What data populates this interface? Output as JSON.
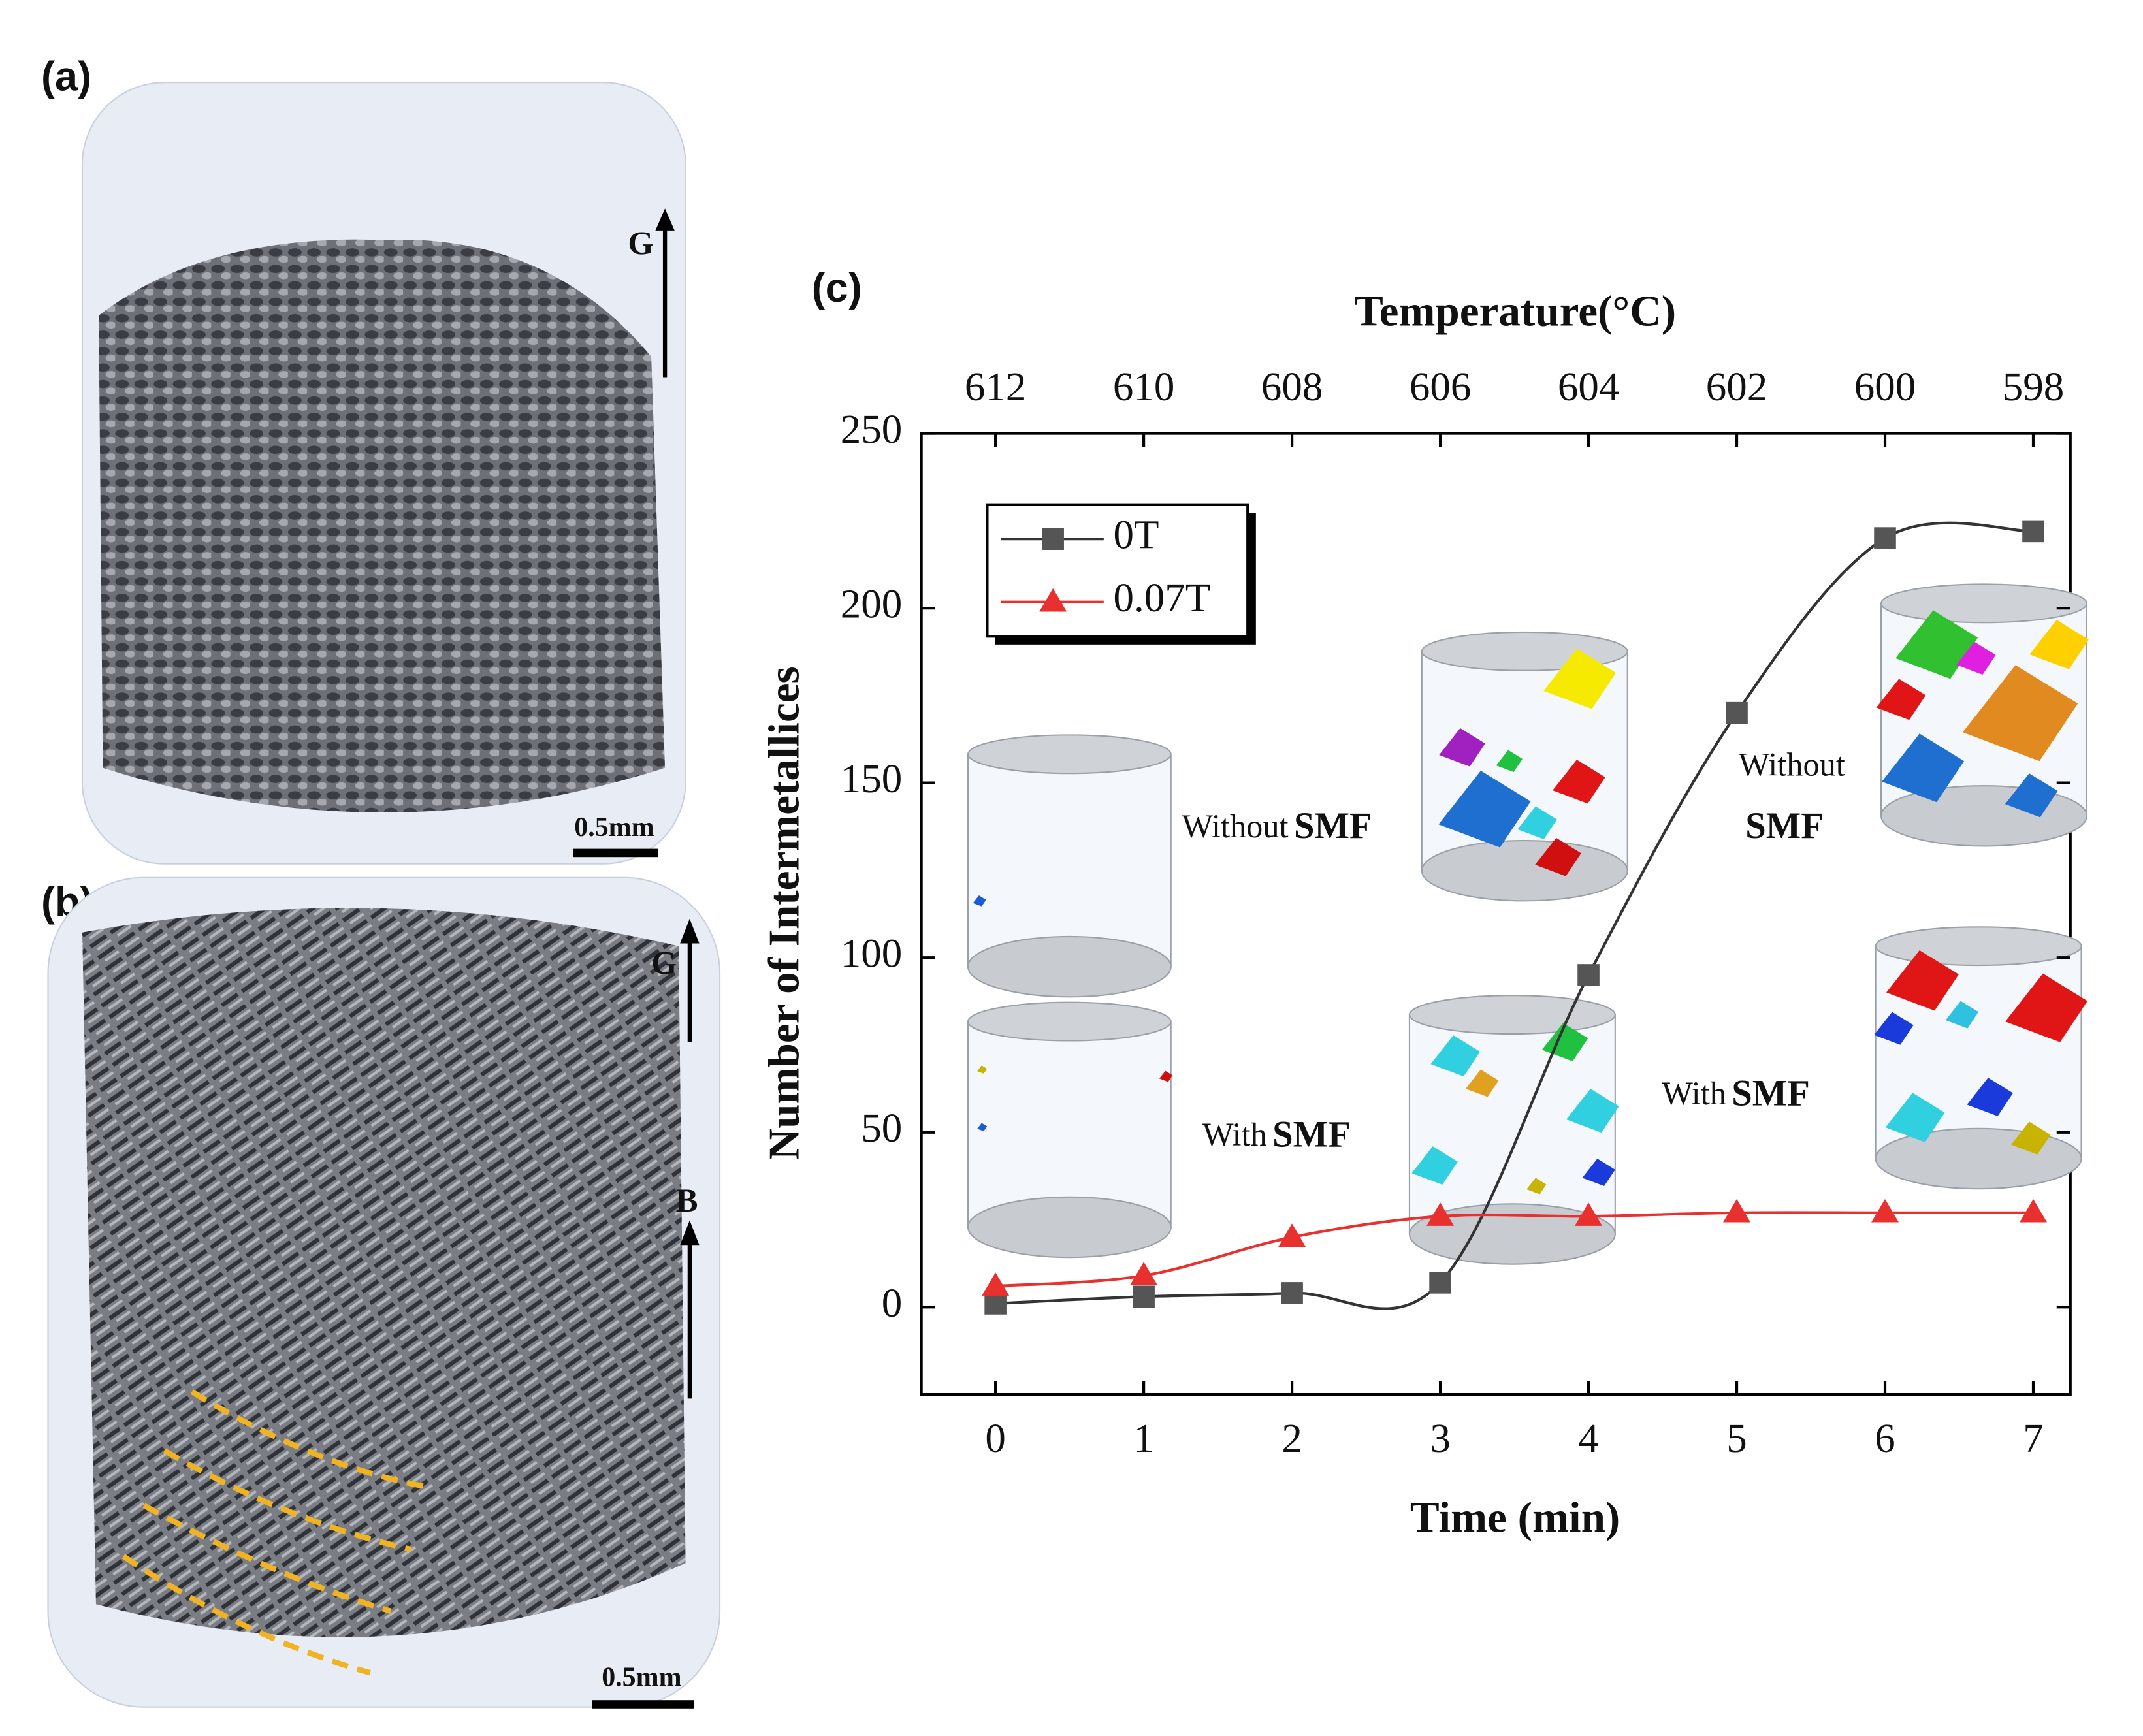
{
  "panels": [
    {
      "label": "(a)",
      "arrow_labels": [
        "G"
      ],
      "scale_bar": "0.5mm"
    },
    {
      "label": "(b)",
      "arrow_labels": [
        "G",
        "B"
      ],
      "scale_bar": "0.5mm"
    }
  ],
  "chart_data": {
    "type": "line",
    "panel_label": "(c)",
    "x_label": "Time (min)",
    "y_label": "Number of Intermetallices",
    "x2_label": "Temperature(°C)",
    "x": [
      0,
      1,
      2,
      3,
      4,
      5,
      6,
      7
    ],
    "series": [
      {
        "name": "0T",
        "color": "#333333",
        "marker": "square",
        "values": [
          1,
          3,
          4,
          7,
          95,
          170,
          220,
          222
        ]
      },
      {
        "name": "0.07T",
        "color": "#e8312f",
        "marker": "triangle",
        "values": [
          6,
          9,
          20,
          26,
          26,
          27,
          27,
          27
        ]
      }
    ],
    "xlim": [
      -0.5,
      7.25
    ],
    "ylim": [
      -25,
      250
    ],
    "xticks": [
      0,
      1,
      2,
      3,
      4,
      5,
      6,
      7
    ],
    "yticks": [
      0,
      50,
      100,
      150,
      200,
      250
    ],
    "x2ticks": [
      {
        "value": 0,
        "label": "612"
      },
      {
        "value": 1,
        "label": "610"
      },
      {
        "value": 2,
        "label": "608"
      },
      {
        "value": 3,
        "label": "606"
      },
      {
        "value": 4,
        "label": "604"
      },
      {
        "value": 5,
        "label": "602"
      },
      {
        "value": 6,
        "label": "600"
      },
      {
        "value": 7,
        "label": "598"
      }
    ],
    "legend": "upper left",
    "grid": false,
    "annotations": [
      {
        "text": "Without",
        "bold": "SMF"
      },
      {
        "text": "Without",
        "bold": "SMF"
      },
      {
        "text": "With",
        "bold": "SMF"
      },
      {
        "text": "With",
        "bold": "SMF"
      }
    ]
  }
}
